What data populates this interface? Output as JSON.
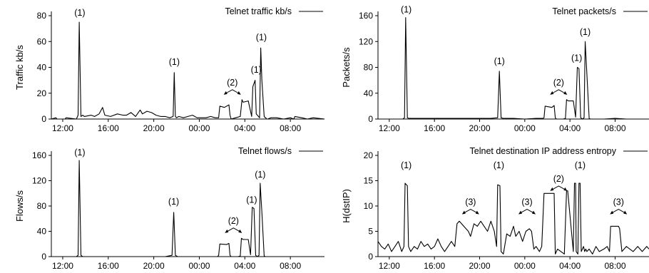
{
  "figure": {
    "background": "#ffffff",
    "line_color": "#000000"
  },
  "chart_data": [
    {
      "id": "traffic",
      "type": "line",
      "legend": "Telnet traffic kb/s",
      "ylabel": "Traffic kb/s",
      "xlabel": "",
      "ylim": [
        0,
        80
      ],
      "yticks": [
        "0",
        "20",
        "40",
        "60",
        "80"
      ],
      "xlim": [
        "11:00",
        "11:00 (+1 day)"
      ],
      "xticks": [
        "12:00",
        "16:00",
        "20:00",
        "00:00",
        "04:00",
        "08:00"
      ],
      "grid": false,
      "legend_position": "top-right",
      "series": [
        {
          "x_hours": [
            11.0,
            11.4,
            11.5,
            12.2,
            12.3,
            13.2,
            13.35,
            13.45,
            13.6,
            13.75,
            13.9,
            14.5,
            14.8,
            15.2,
            15.5,
            15.7,
            16.2,
            16.8,
            17.3,
            17.6,
            18.0,
            18.4,
            18.8,
            19.0,
            19.4,
            19.8,
            20.2,
            20.6,
            21.0,
            21.4,
            21.7,
            21.8,
            21.9,
            22.0,
            22.2,
            22.6,
            23.0,
            23.4,
            23.8,
            24.2,
            24.6,
            25.0,
            25.4,
            25.7,
            25.8,
            26.2,
            26.6,
            26.7,
            26.8,
            27.2,
            27.6,
            27.75,
            27.85,
            28.3,
            28.6,
            28.7,
            28.9,
            29.0,
            29.2,
            29.3,
            29.4,
            29.5,
            29.7,
            29.8,
            29.85,
            29.9,
            30.0,
            30.3,
            30.8,
            31.4,
            32.0,
            32.3,
            32.4,
            33.0,
            33.5,
            34.0,
            35.0
          ],
          "values": [
            0,
            1,
            0,
            0,
            1,
            0,
            3,
            75,
            2,
            3,
            2,
            3,
            2,
            4,
            9,
            3,
            2,
            4,
            3,
            3,
            5,
            2,
            7,
            4,
            6,
            5,
            3,
            2,
            2,
            1,
            2,
            36,
            2,
            1,
            2,
            1,
            2,
            3,
            1,
            1,
            1,
            2,
            1,
            1,
            10,
            9,
            11,
            3,
            0,
            1,
            2,
            15,
            13,
            14,
            2,
            25,
            30,
            4,
            2,
            1,
            55,
            30,
            2,
            1,
            1,
            0,
            0,
            1,
            1,
            0,
            1,
            0,
            2,
            1,
            0,
            1,
            0
          ]
        }
      ],
      "annotations": [
        {
          "text": "(1)",
          "x_hours": 13.5,
          "y": 80
        },
        {
          "text": "(1)",
          "x_hours": 21.8,
          "y": 42
        },
        {
          "text": "(2)",
          "x_hours": 26.9,
          "y": 26
        },
        {
          "text": "(1)",
          "x_hours": 29.0,
          "y": 36
        },
        {
          "text": "(1)",
          "x_hours": 29.45,
          "y": 61
        }
      ]
    },
    {
      "id": "packets",
      "type": "line",
      "legend": "Telnet packets/s",
      "ylabel": "Packets/s",
      "xlabel": "",
      "ylim": [
        0,
        160
      ],
      "yticks": [
        "0",
        "40",
        "80",
        "120",
        "160"
      ],
      "xlim": [
        "11:00",
        "11:00 (+1 day)"
      ],
      "xticks": [
        "12:00",
        "16:00",
        "20:00",
        "00:00",
        "04:00",
        "08:00"
      ],
      "grid": false,
      "legend_position": "top-right",
      "series": [
        {
          "x_hours": [
            11.0,
            12.0,
            13.2,
            13.35,
            13.45,
            13.6,
            13.75,
            15.0,
            17.0,
            19.0,
            21.0,
            21.6,
            21.75,
            21.9,
            22.1,
            23.0,
            24.0,
            25.0,
            25.6,
            25.7,
            25.8,
            26.4,
            26.6,
            26.7,
            26.8,
            27.4,
            27.6,
            27.7,
            27.85,
            28.3,
            28.5,
            28.65,
            28.8,
            28.95,
            29.1,
            29.25,
            29.35,
            29.5,
            29.7,
            29.8,
            29.9,
            30.0,
            31.0,
            32.0,
            33.0,
            34.0,
            35.0
          ],
          "values": [
            0,
            0,
            0,
            2,
            157,
            2,
            1,
            1,
            1,
            1,
            1,
            2,
            74,
            2,
            1,
            1,
            0,
            1,
            1,
            2,
            20,
            18,
            21,
            2,
            0,
            0,
            1,
            30,
            28,
            28,
            3,
            80,
            78,
            2,
            0,
            2,
            120,
            70,
            1,
            0,
            0,
            0,
            0,
            1,
            0,
            0,
            0
          ]
        }
      ],
      "annotations": [
        {
          "text": "(1)",
          "x_hours": 13.5,
          "y": 165
        },
        {
          "text": "(1)",
          "x_hours": 21.75,
          "y": 85
        },
        {
          "text": "(2)",
          "x_hours": 27.0,
          "y": 52
        },
        {
          "text": "(1)",
          "x_hours": 28.6,
          "y": 90
        },
        {
          "text": "(1)",
          "x_hours": 29.35,
          "y": 130
        }
      ]
    },
    {
      "id": "flows",
      "type": "line",
      "legend": "Telnet flows/s",
      "ylabel": "Flows/s",
      "xlabel": "",
      "ylim": [
        0,
        160
      ],
      "yticks": [
        "0",
        "40",
        "80",
        "120",
        "160"
      ],
      "xlim": [
        "11:00",
        "11:00 (+1 day)"
      ],
      "xticks": [
        "12:00",
        "16:00",
        "20:00",
        "00:00",
        "04:00",
        "08:00"
      ],
      "grid": false,
      "legend_position": "top-right",
      "series": [
        {
          "x_hours": [
            11.0,
            12.0,
            13.2,
            13.35,
            13.45,
            13.6,
            13.75,
            15.0,
            17.0,
            19.0,
            21.0,
            21.6,
            21.75,
            21.9,
            22.1,
            23.0,
            24.0,
            25.0,
            25.6,
            25.7,
            25.8,
            26.4,
            26.6,
            26.7,
            26.8,
            27.4,
            27.6,
            27.7,
            27.85,
            28.3,
            28.5,
            28.65,
            28.8,
            28.95,
            29.1,
            29.25,
            29.35,
            29.5,
            29.7,
            29.8,
            29.9,
            30.0,
            31.0,
            32.0,
            33.0,
            34.0,
            35.0
          ],
          "values": [
            0,
            0,
            0,
            2,
            152,
            2,
            0,
            0,
            0,
            0,
            0,
            2,
            70,
            2,
            0,
            0,
            0,
            0,
            0,
            2,
            20,
            19,
            21,
            2,
            0,
            0,
            1,
            29,
            27,
            27,
            3,
            78,
            76,
            2,
            0,
            2,
            116,
            70,
            1,
            0,
            0,
            0,
            0,
            0,
            0,
            0,
            0
          ]
        }
      ],
      "annotations": [
        {
          "text": "(1)",
          "x_hours": 13.5,
          "y": 160
        },
        {
          "text": "(1)",
          "x_hours": 21.75,
          "y": 82
        },
        {
          "text": "(2)",
          "x_hours": 27.0,
          "y": 52
        },
        {
          "text": "(1)",
          "x_hours": 28.6,
          "y": 85
        },
        {
          "text": "(1)",
          "x_hours": 29.35,
          "y": 125
        }
      ]
    },
    {
      "id": "entropy",
      "type": "line",
      "legend": "Telnet destination IP address entropy",
      "ylabel": "H(dstIP)",
      "xlabel": "",
      "ylim": [
        0,
        20
      ],
      "yticks": [
        "0",
        "5",
        "10",
        "15",
        "20"
      ],
      "xlim": [
        "11:00",
        "11:00 (+1 day)"
      ],
      "xticks": [
        "12:00",
        "16:00",
        "20:00",
        "00:00",
        "04:00",
        "08:00"
      ],
      "grid": false,
      "legend_position": "top-right",
      "series": [
        {
          "x_hours": [
            11.0,
            11.3,
            11.6,
            11.9,
            12.2,
            12.5,
            12.8,
            13.1,
            13.3,
            13.4,
            13.6,
            13.7,
            13.9,
            14.2,
            14.5,
            14.8,
            15.1,
            15.4,
            15.7,
            16.0,
            16.3,
            16.6,
            16.9,
            17.2,
            17.5,
            17.8,
            18.0,
            18.2,
            18.6,
            19.0,
            19.2,
            19.5,
            19.8,
            20.1,
            20.4,
            20.7,
            21.0,
            21.3,
            21.5,
            21.6,
            21.8,
            21.9,
            22.1,
            22.4,
            22.7,
            23.0,
            23.2,
            23.5,
            23.8,
            24.1,
            24.4,
            24.6,
            24.8,
            25.0,
            25.3,
            25.5,
            25.7,
            25.8,
            26.3,
            26.6,
            26.7,
            26.9,
            27.2,
            27.5,
            27.7,
            27.8,
            28.3,
            28.4,
            28.5,
            28.55,
            28.7,
            28.8,
            28.9,
            29.0,
            29.2,
            29.3,
            29.4,
            29.5,
            29.7,
            30.0,
            30.3,
            30.6,
            31.0,
            31.3,
            31.5,
            31.6,
            32.3,
            32.4,
            32.6,
            33.0,
            33.3,
            33.6,
            34.0,
            34.4,
            34.8,
            35.0
          ],
          "values": [
            3,
            2,
            1.5,
            2.5,
            1,
            2,
            3,
            1,
            2,
            14.5,
            14,
            2,
            1,
            2,
            1.5,
            3,
            2,
            2.5,
            1.5,
            2,
            3.5,
            2,
            1,
            2,
            3,
            2,
            6.5,
            7,
            6,
            5,
            4,
            6.5,
            6,
            7,
            6,
            5,
            7,
            5,
            2,
            14.2,
            14,
            1,
            0.5,
            4.5,
            4,
            6,
            4,
            5,
            3,
            5,
            5.5,
            5,
            1.5,
            2,
            1,
            2,
            12.5,
            12.5,
            12.5,
            12.5,
            0.5,
            1.5,
            1,
            0.5,
            13,
            13,
            1,
            14.5,
            14.5,
            1,
            0.5,
            14.5,
            14.5,
            1,
            2,
            1,
            1.5,
            1,
            1.5,
            0.5,
            2,
            1,
            1.5,
            2,
            1,
            6,
            6,
            5.5,
            1,
            2,
            1.5,
            1,
            2,
            1,
            2,
            1.5
          ]
        }
      ],
      "annotations": [
        {
          "text": "(1)",
          "x_hours": 13.5,
          "y": 17.5
        },
        {
          "text": "(3)",
          "x_hours": 19.2,
          "y": 10.2
        },
        {
          "text": "(1)",
          "x_hours": 21.7,
          "y": 17.5
        },
        {
          "text": "(3)",
          "x_hours": 24.2,
          "y": 10.2
        },
        {
          "text": "(2)",
          "x_hours": 27.0,
          "y": 14.8
        },
        {
          "text": "(1)",
          "x_hours": 28.9,
          "y": 17.5
        },
        {
          "text": "(3)",
          "x_hours": 32.3,
          "y": 10.2
        }
      ]
    }
  ]
}
